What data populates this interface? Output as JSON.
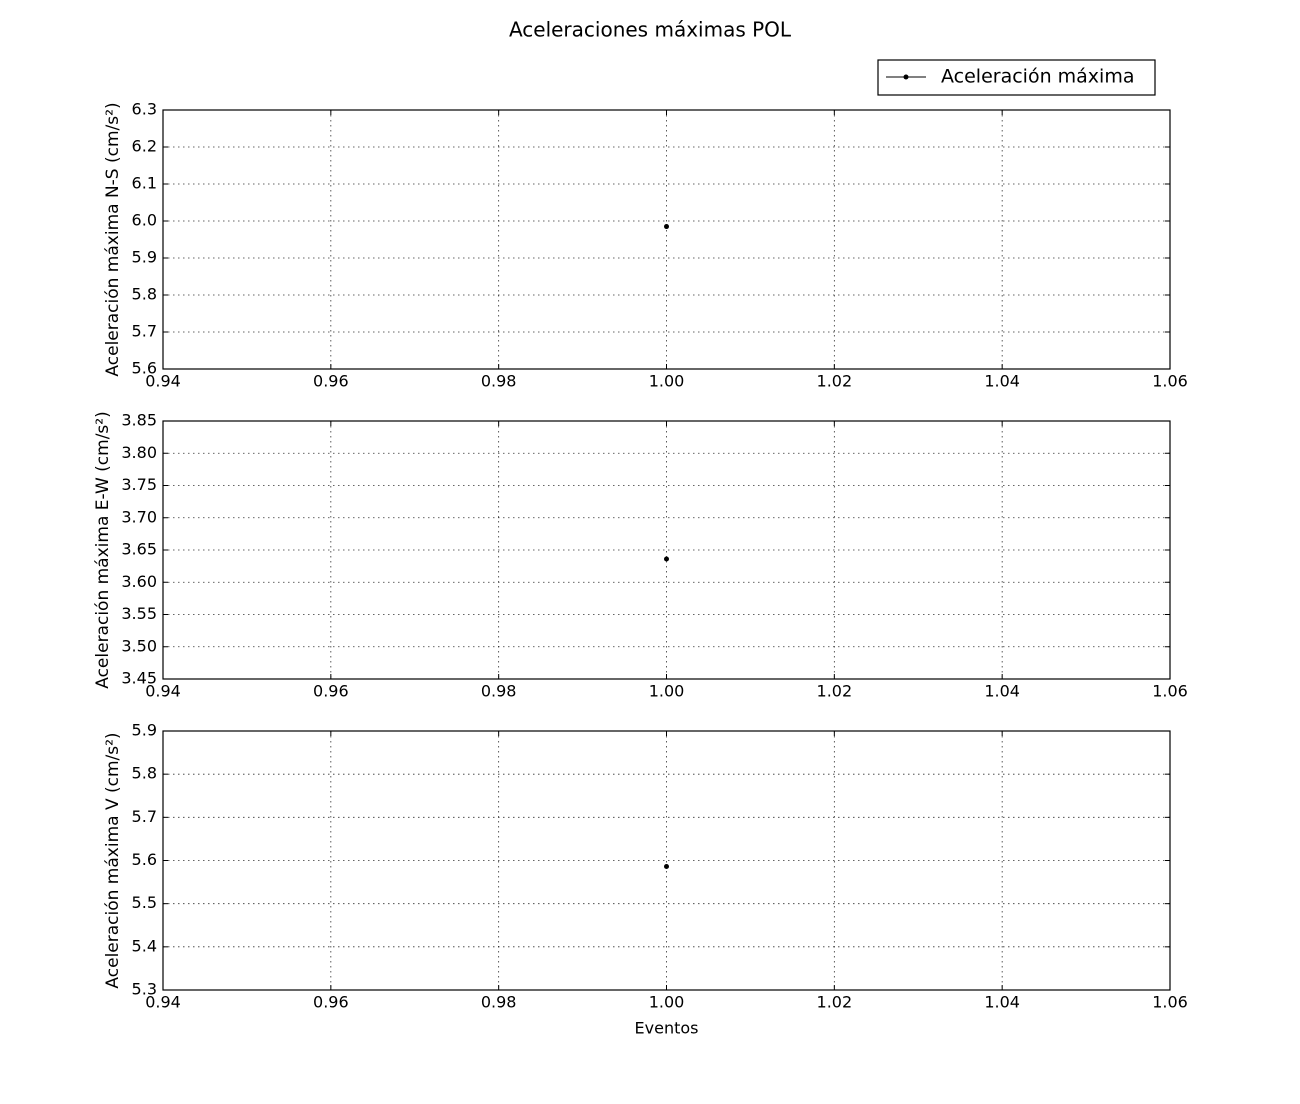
{
  "chart_data": [
    {
      "type": "line",
      "title": "Aceleraciones máximas POL",
      "ylabel": "Aceleración máxima N-S (cm/s²)",
      "legend": "upper right",
      "series": [
        {
          "name": "Aceleración máxima",
          "color": "#000000",
          "x": [
            {
              "value": 1,
              "label": "1.00"
            }
          ],
          "values": [
            5.985
          ]
        }
      ],
      "xlim": [
        0.94,
        1.06
      ],
      "xticks": [
        0.94,
        0.96,
        0.98,
        {
          "value": 1,
          "label": "1.00"
        },
        1.02,
        1.04,
        1.06
      ],
      "ylim": [
        5.6,
        6.3
      ],
      "yticks": [
        5.6,
        5.7,
        5.8,
        5.9,
        {
          "value": 6,
          "label": "6.0"
        },
        6.1,
        6.2,
        6.3
      ],
      "grid": true
    },
    {
      "type": "line",
      "ylabel": "Aceleración máxima E-W (cm/s²)",
      "series": [
        {
          "color": "#000000",
          "x": [
            1
          ],
          "values": [
            3.636
          ]
        }
      ],
      "xlim": [
        0.94,
        1.06
      ],
      "xticks": [
        0.94,
        0.96,
        0.98,
        {
          "value": 1,
          "label": "1.00"
        },
        1.02,
        1.04,
        1.06
      ],
      "ylim": [
        3.45,
        3.85
      ],
      "yticks": [
        3.45,
        {
          "value": 3.5,
          "label": "3.50"
        },
        3.55,
        {
          "value": 3.6,
          "label": "3.60"
        },
        3.65,
        {
          "value": 3.7,
          "label": "3.70"
        },
        3.75,
        {
          "value": 3.8,
          "label": "3.80"
        },
        3.85
      ],
      "grid": true
    },
    {
      "type": "line",
      "ylabel": "Aceleración máxima V (cm/s²)",
      "xlabel": "Eventos",
      "series": [
        {
          "color": "#000000",
          "x": [
            1
          ],
          "values": [
            5.586
          ]
        }
      ],
      "xlim": [
        0.94,
        1.06
      ],
      "xticks": [
        0.94,
        0.96,
        0.98,
        {
          "value": 1,
          "label": "1.00"
        },
        1.02,
        1.04,
        1.06
      ],
      "ylim": [
        5.3,
        5.9
      ],
      "yticks": [
        5.3,
        5.4,
        5.5,
        5.6,
        5.7,
        5.8,
        5.9
      ],
      "grid": true
    }
  ]
}
